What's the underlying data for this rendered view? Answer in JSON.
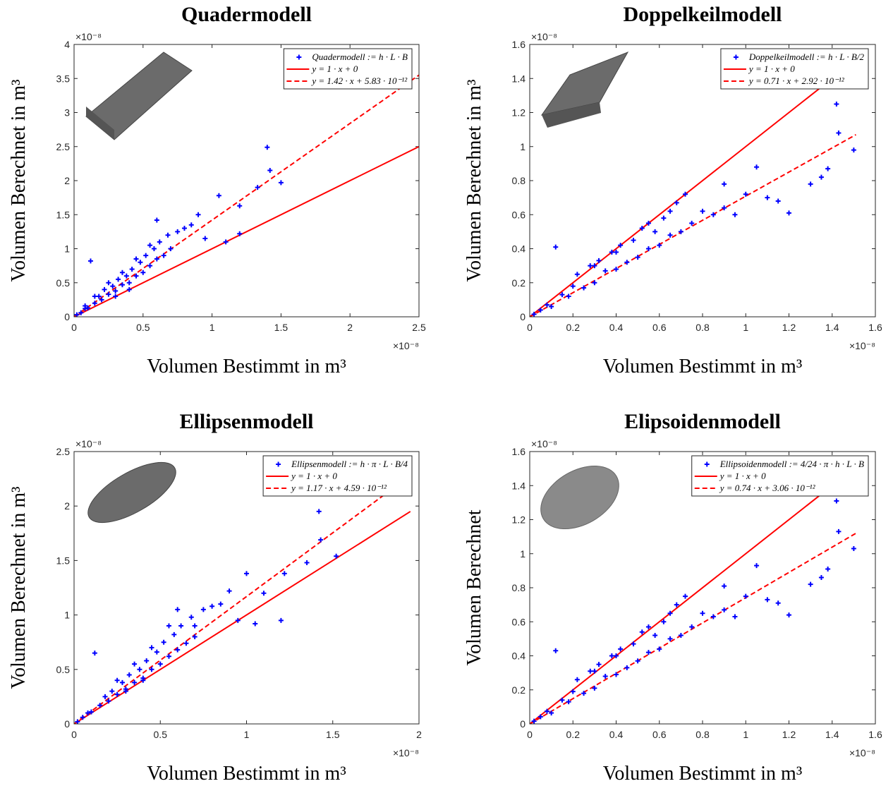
{
  "chart_data": [
    {
      "type": "scatter",
      "title": "Quadermodell",
      "x_label": "Volumen Bestimmt in m³",
      "y_label": "Volumen Berechnet in m³",
      "x_exponent": "×10⁻⁸",
      "y_exponent": "×10⁻⁸",
      "xlim": [
        0,
        2.5
      ],
      "ylim": [
        0,
        4
      ],
      "xticks": [
        0,
        0.5,
        1,
        1.5,
        2,
        2.5
      ],
      "yticks": [
        0,
        0.5,
        1,
        1.5,
        2,
        2.5,
        3,
        3.5,
        4
      ],
      "legend": "upper right",
      "series": [
        {
          "name": "Quadermodell := h · L · B",
          "color": "#0000ff",
          "kind": "scatter",
          "x": [
            0.02,
            0.05,
            0.08,
            0.1,
            0.12,
            0.15,
            0.18,
            0.2,
            0.22,
            0.25,
            0.28,
            0.3,
            0.32,
            0.35,
            0.38,
            0.4,
            0.42,
            0.45,
            0.48,
            0.5,
            0.52,
            0.55,
            0.58,
            0.6,
            0.6,
            0.62,
            0.65,
            0.68,
            0.7,
            0.75,
            0.8,
            0.85,
            0.9,
            0.95,
            1.05,
            1.1,
            1.2,
            1.2,
            1.33,
            1.4,
            1.42,
            1.5,
            0.35,
            0.45,
            0.25,
            0.15,
            0.08,
            0.3,
            0.4,
            0.55
          ],
          "values": [
            0.03,
            0.06,
            0.12,
            0.13,
            0.82,
            0.2,
            0.3,
            0.25,
            0.4,
            0.33,
            0.45,
            0.38,
            0.55,
            0.47,
            0.6,
            0.5,
            0.7,
            0.6,
            0.8,
            0.65,
            0.9,
            0.75,
            1.0,
            0.85,
            1.42,
            1.1,
            0.9,
            1.2,
            1.0,
            1.25,
            1.3,
            1.35,
            1.5,
            1.15,
            1.78,
            1.1,
            1.63,
            1.22,
            1.9,
            2.49,
            2.15,
            1.97,
            0.65,
            0.85,
            0.5,
            0.3,
            0.16,
            0.3,
            0.4,
            1.05
          ]
        },
        {
          "name": "y = 1 · x + 0",
          "color": "#ff0000",
          "kind": "solid",
          "x": [
            0,
            2.5
          ],
          "values": [
            0,
            2.5
          ]
        },
        {
          "name": "y = 1.42 · x + 5.83 · 10⁻¹²",
          "color": "#ff0000",
          "kind": "dashed",
          "x": [
            0,
            2.5
          ],
          "values": [
            0,
            3.55
          ]
        }
      ]
    },
    {
      "type": "scatter",
      "title": "Doppelkeilmodell",
      "x_label": "Volumen Bestimmt in m³",
      "y_label": "Volumen Berechnet in m³",
      "x_exponent": "×10⁻⁸",
      "y_exponent": "×10⁻⁸",
      "xlim": [
        0,
        1.6
      ],
      "ylim": [
        0,
        1.6
      ],
      "xticks": [
        0,
        0.2,
        0.4,
        0.6,
        0.8,
        1,
        1.2,
        1.4,
        1.6
      ],
      "yticks": [
        0,
        0.2,
        0.4,
        0.6,
        0.8,
        1,
        1.2,
        1.4,
        1.6
      ],
      "legend": "upper right",
      "series": [
        {
          "name": "Doppelkeilmodell := h · L · B/2",
          "color": "#0000ff",
          "kind": "scatter",
          "x": [
            0.02,
            0.05,
            0.08,
            0.1,
            0.12,
            0.15,
            0.18,
            0.2,
            0.22,
            0.25,
            0.28,
            0.3,
            0.32,
            0.35,
            0.38,
            0.4,
            0.42,
            0.45,
            0.48,
            0.5,
            0.52,
            0.55,
            0.58,
            0.6,
            0.62,
            0.65,
            0.68,
            0.7,
            0.72,
            0.75,
            0.8,
            0.85,
            0.9,
            0.95,
            1.0,
            1.05,
            1.1,
            1.15,
            1.2,
            1.3,
            1.35,
            1.38,
            1.42,
            1.43,
            1.5,
            0.3,
            0.4,
            0.55,
            0.65,
            0.9
          ],
          "values": [
            0.015,
            0.04,
            0.07,
            0.06,
            0.41,
            0.13,
            0.12,
            0.18,
            0.25,
            0.17,
            0.3,
            0.2,
            0.33,
            0.27,
            0.38,
            0.28,
            0.42,
            0.32,
            0.45,
            0.35,
            0.52,
            0.4,
            0.5,
            0.42,
            0.58,
            0.48,
            0.67,
            0.5,
            0.72,
            0.55,
            0.62,
            0.6,
            0.64,
            0.6,
            0.72,
            0.88,
            0.7,
            0.68,
            0.61,
            0.78,
            0.82,
            0.87,
            1.25,
            1.08,
            0.98,
            0.3,
            0.38,
            0.55,
            0.62,
            0.78
          ]
        },
        {
          "name": "y = 1 · x + 0",
          "color": "#ff0000",
          "kind": "solid",
          "x": [
            0,
            1.51
          ],
          "values": [
            0,
            1.51
          ]
        },
        {
          "name": "y = 0.71 · x + 2.92 · 10⁻¹²",
          "color": "#ff0000",
          "kind": "dashed",
          "x": [
            0,
            1.51
          ],
          "values": [
            0,
            1.07
          ]
        }
      ]
    },
    {
      "type": "scatter",
      "title": "Ellipsenmodell",
      "x_label": "Volumen Bestimmt in m³",
      "y_label": "Volumen Berechnet in m³",
      "x_exponent": "×10⁻⁸",
      "y_exponent": "×10⁻⁸",
      "xlim": [
        0,
        2
      ],
      "ylim": [
        0,
        2.5
      ],
      "xticks": [
        0,
        0.5,
        1,
        1.5,
        2
      ],
      "yticks": [
        0,
        0.5,
        1,
        1.5,
        2,
        2.5
      ],
      "legend": "upper right",
      "series": [
        {
          "name": "Ellipsenmodell := h · π · L · B/4",
          "color": "#0000ff",
          "kind": "scatter",
          "x": [
            0.02,
            0.05,
            0.08,
            0.1,
            0.12,
            0.15,
            0.18,
            0.2,
            0.22,
            0.25,
            0.28,
            0.3,
            0.32,
            0.35,
            0.38,
            0.4,
            0.42,
            0.45,
            0.48,
            0.5,
            0.52,
            0.55,
            0.58,
            0.6,
            0.6,
            0.62,
            0.65,
            0.68,
            0.7,
            0.75,
            0.8,
            0.85,
            0.9,
            0.95,
            1.0,
            1.05,
            1.1,
            1.2,
            1.22,
            1.35,
            1.42,
            1.43,
            1.52,
            0.35,
            0.45,
            0.25,
            0.3,
            0.4,
            0.55,
            0.7
          ],
          "values": [
            0.02,
            0.06,
            0.1,
            0.11,
            0.65,
            0.17,
            0.25,
            0.21,
            0.3,
            0.27,
            0.38,
            0.32,
            0.45,
            0.38,
            0.5,
            0.42,
            0.58,
            0.5,
            0.66,
            0.55,
            0.75,
            0.62,
            0.82,
            0.68,
            1.05,
            0.9,
            0.74,
            0.98,
            0.8,
            1.05,
            1.08,
            1.1,
            1.22,
            0.95,
            1.38,
            0.92,
            1.2,
            0.95,
            1.38,
            1.48,
            1.95,
            1.69,
            1.54,
            0.55,
            0.7,
            0.4,
            0.3,
            0.4,
            0.9,
            0.9
          ]
        },
        {
          "name": "y = 1 · x + 0",
          "color": "#ff0000",
          "kind": "solid",
          "x": [
            0,
            1.95
          ],
          "values": [
            0,
            1.95
          ]
        },
        {
          "name": "y = 1.17 · x + 4.59 · 10⁻¹²",
          "color": "#ff0000",
          "kind": "dashed",
          "x": [
            0,
            1.95
          ],
          "values": [
            0,
            2.28
          ]
        }
      ]
    },
    {
      "type": "scatter",
      "title": "Elipsoidenmodell",
      "x_label": "Volumen Bestimmt in m³",
      "y_label": "Volumen Berechnet",
      "x_exponent": "×10⁻⁸",
      "y_exponent": "×10⁻⁸",
      "xlim": [
        0,
        1.6
      ],
      "ylim": [
        0,
        1.6
      ],
      "xticks": [
        0,
        0.2,
        0.4,
        0.6,
        0.8,
        1,
        1.2,
        1.4,
        1.6
      ],
      "yticks": [
        0,
        0.2,
        0.4,
        0.6,
        0.8,
        1,
        1.2,
        1.4,
        1.6
      ],
      "legend": "upper right",
      "series": [
        {
          "name": "Ellipsoidenmodell := 4/24 · π · h · L · B",
          "color": "#0000ff",
          "kind": "scatter",
          "x": [
            0.02,
            0.05,
            0.08,
            0.1,
            0.12,
            0.15,
            0.18,
            0.2,
            0.22,
            0.25,
            0.28,
            0.3,
            0.32,
            0.35,
            0.38,
            0.4,
            0.42,
            0.45,
            0.48,
            0.5,
            0.52,
            0.55,
            0.58,
            0.6,
            0.62,
            0.65,
            0.68,
            0.7,
            0.72,
            0.75,
            0.8,
            0.85,
            0.9,
            0.95,
            1.0,
            1.05,
            1.1,
            1.15,
            1.2,
            1.3,
            1.35,
            1.38,
            1.42,
            1.43,
            1.5,
            0.3,
            0.4,
            0.55,
            0.65,
            0.9
          ],
          "values": [
            0.016,
            0.042,
            0.074,
            0.064,
            0.43,
            0.14,
            0.13,
            0.19,
            0.26,
            0.18,
            0.31,
            0.21,
            0.35,
            0.28,
            0.4,
            0.29,
            0.44,
            0.33,
            0.47,
            0.37,
            0.54,
            0.42,
            0.52,
            0.44,
            0.6,
            0.5,
            0.7,
            0.52,
            0.75,
            0.57,
            0.65,
            0.63,
            0.67,
            0.63,
            0.75,
            0.93,
            0.73,
            0.71,
            0.64,
            0.82,
            0.86,
            0.91,
            1.31,
            1.13,
            1.03,
            0.31,
            0.4,
            0.57,
            0.65,
            0.81
          ]
        },
        {
          "name": "y = 1 · x + 0",
          "color": "#ff0000",
          "kind": "solid",
          "x": [
            0,
            1.51
          ],
          "values": [
            0,
            1.51
          ]
        },
        {
          "name": "y = 0.74 · x + 3.06 · 10⁻¹²",
          "color": "#ff0000",
          "kind": "dashed",
          "x": [
            0,
            1.51
          ],
          "values": [
            0,
            1.12
          ]
        }
      ]
    }
  ]
}
